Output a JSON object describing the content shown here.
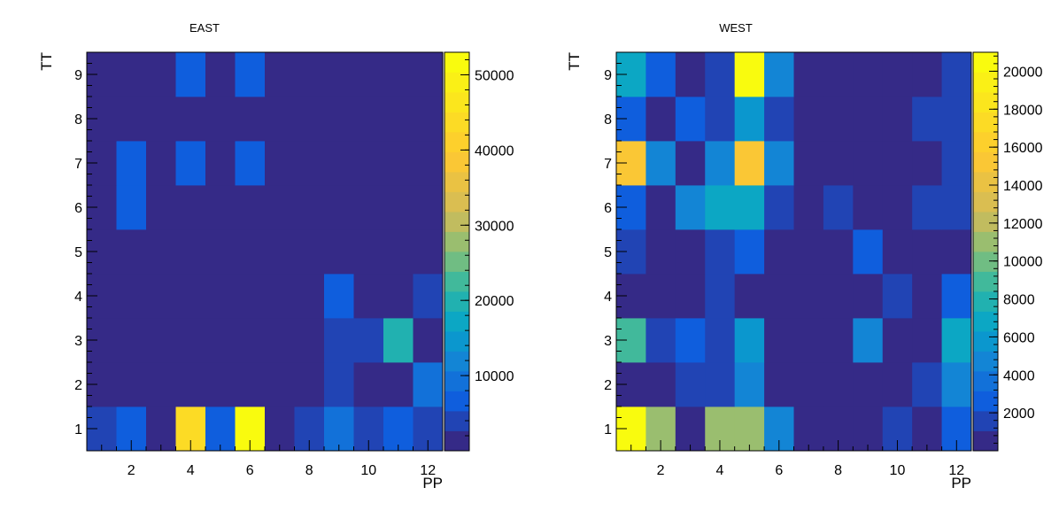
{
  "chart_data": [
    {
      "type": "heatmap",
      "title": "EAST",
      "xlabel": "PP",
      "ylabel": "TT",
      "x": [
        1,
        2,
        3,
        4,
        5,
        6,
        7,
        8,
        9,
        10,
        11,
        12
      ],
      "y": [
        1,
        2,
        3,
        4,
        5,
        6,
        7,
        8,
        9
      ],
      "xticks": [
        "2",
        "4",
        "6",
        "8",
        "10",
        "12"
      ],
      "yticks": [
        "1",
        "2",
        "3",
        "4",
        "5",
        "6",
        "7",
        "8",
        "9"
      ],
      "xlim": [
        0.5,
        12.5
      ],
      "ylim": [
        0.5,
        9.5
      ],
      "zlim": [
        0,
        53000
      ],
      "colorbar_ticks": [
        "10000",
        "20000",
        "30000",
        "40000",
        "50000"
      ],
      "z": [
        [
          3000,
          7000,
          2500,
          45000,
          6000,
          53000,
          2500,
          5000,
          9000,
          3000,
          7000,
          3000
        ],
        [
          1000,
          1000,
          1000,
          1000,
          1000,
          1000,
          1000,
          1000,
          4000,
          1000,
          1000,
          8000
        ],
        [
          1000,
          1000,
          1000,
          1000,
          1000,
          1000,
          1000,
          1000,
          5000,
          5000,
          21000,
          1000
        ],
        [
          1000,
          1000,
          1000,
          1000,
          1000,
          1000,
          1000,
          1000,
          7000,
          1000,
          1000,
          5000
        ],
        [
          1000,
          1000,
          1000,
          1000,
          1000,
          1000,
          1000,
          1000,
          1000,
          1000,
          1000,
          1000
        ],
        [
          1000,
          7000,
          1000,
          1000,
          1000,
          1000,
          1000,
          1000,
          1000,
          1000,
          1000,
          1000
        ],
        [
          1000,
          7000,
          1000,
          7000,
          1000,
          7000,
          1000,
          1000,
          1000,
          1000,
          1000,
          1000
        ],
        [
          1000,
          1000,
          1000,
          1000,
          1000,
          1000,
          1000,
          1000,
          1000,
          1000,
          1000,
          1000
        ],
        [
          1000,
          1000,
          1000,
          7500,
          1000,
          7000,
          1000,
          1000,
          1000,
          1000,
          1000,
          1000
        ]
      ]
    },
    {
      "type": "heatmap",
      "title": "WEST",
      "xlabel": "PP",
      "ylabel": "TT",
      "x": [
        1,
        2,
        3,
        4,
        5,
        6,
        7,
        8,
        9,
        10,
        11,
        12
      ],
      "y": [
        1,
        2,
        3,
        4,
        5,
        6,
        7,
        8,
        9
      ],
      "xticks": [
        "2",
        "4",
        "6",
        "8",
        "10",
        "12"
      ],
      "yticks": [
        "1",
        "2",
        "3",
        "4",
        "5",
        "6",
        "7",
        "8",
        "9"
      ],
      "xlim": [
        0.5,
        12.5
      ],
      "ylim": [
        0.5,
        9.5
      ],
      "zlim": [
        0,
        21000
      ],
      "colorbar_ticks": [
        "2000",
        "4000",
        "6000",
        "8000",
        "10000",
        "12000",
        "14000",
        "16000",
        "18000",
        "20000"
      ],
      "z": [
        [
          21000,
          11000,
          800,
          11000,
          11000,
          4500,
          800,
          800,
          800,
          2000,
          800,
          2500
        ],
        [
          800,
          800,
          2000,
          2000,
          5000,
          800,
          800,
          800,
          800,
          800,
          2000,
          4500
        ],
        [
          9000,
          2000,
          3000,
          2000,
          6000,
          800,
          800,
          800,
          5000,
          800,
          800,
          6500
        ],
        [
          800,
          800,
          800,
          2000,
          800,
          800,
          800,
          800,
          800,
          2000,
          800,
          3000
        ],
        [
          2000,
          800,
          800,
          2000,
          3000,
          800,
          800,
          800,
          3000,
          800,
          800,
          800
        ],
        [
          3000,
          800,
          4500,
          6500,
          7000,
          2000,
          800,
          2000,
          800,
          800,
          2000,
          2000
        ],
        [
          15000,
          4500,
          800,
          5000,
          15000,
          5000,
          800,
          800,
          800,
          800,
          800,
          2000
        ],
        [
          3000,
          800,
          3000,
          2000,
          5500,
          2000,
          800,
          800,
          800,
          800,
          2000,
          2000
        ],
        [
          7000,
          3000,
          800,
          2000,
          21000,
          4500,
          800,
          800,
          800,
          800,
          800,
          2000
        ]
      ]
    }
  ]
}
